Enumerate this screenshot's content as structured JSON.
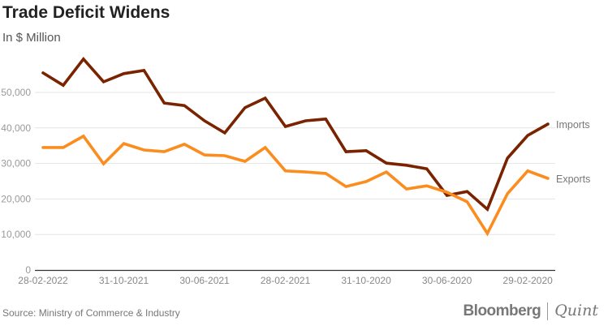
{
  "title": "Trade Deficit Widens",
  "subtitle": "In $ Million",
  "source": "Source: Ministry of Commerce & Industry",
  "logo": {
    "left": "Bloomberg",
    "right": "Quint"
  },
  "chart_data": {
    "type": "line",
    "title": "Trade Deficit Widens",
    "ylabel": "In $ Million",
    "xlabel": "",
    "ylim": [
      0,
      60000
    ],
    "yticks": [
      0,
      10000,
      20000,
      30000,
      40000,
      50000
    ],
    "ytick_labels": [
      "0",
      "10,000",
      "20,000",
      "30,000",
      "40,000",
      "50,000"
    ],
    "xtick_labels": [
      {
        "index": 0,
        "label": "28-02-2022"
      },
      {
        "index": 4,
        "label": "31-10-2021"
      },
      {
        "index": 8,
        "label": "30-06-2021"
      },
      {
        "index": 12,
        "label": "28-02-2021"
      },
      {
        "index": 16,
        "label": "31-10-2020"
      },
      {
        "index": 20,
        "label": "30-06-2020"
      },
      {
        "index": 24,
        "label": "29-02-2020"
      }
    ],
    "grid": true,
    "legend": "end-of-line labels, right",
    "series": [
      {
        "name": "Imports",
        "color": "#7a2300",
        "values": [
          55500,
          52000,
          59400,
          53000,
          55300,
          56200,
          47000,
          46300,
          42000,
          38600,
          45700,
          48400,
          40400,
          42000,
          42500,
          33300,
          33600,
          30100,
          29500,
          28500,
          21000,
          22100,
          17100,
          31500,
          37900,
          41100
        ]
      },
      {
        "name": "Exports",
        "color": "#fb8c1e",
        "values": [
          34500,
          34500,
          37700,
          29900,
          35600,
          33800,
          33300,
          35400,
          32400,
          32200,
          30600,
          34500,
          27900,
          27600,
          27200,
          23500,
          24900,
          27600,
          22800,
          23700,
          21900,
          19200,
          10300,
          21500,
          27900,
          25800
        ]
      }
    ]
  }
}
